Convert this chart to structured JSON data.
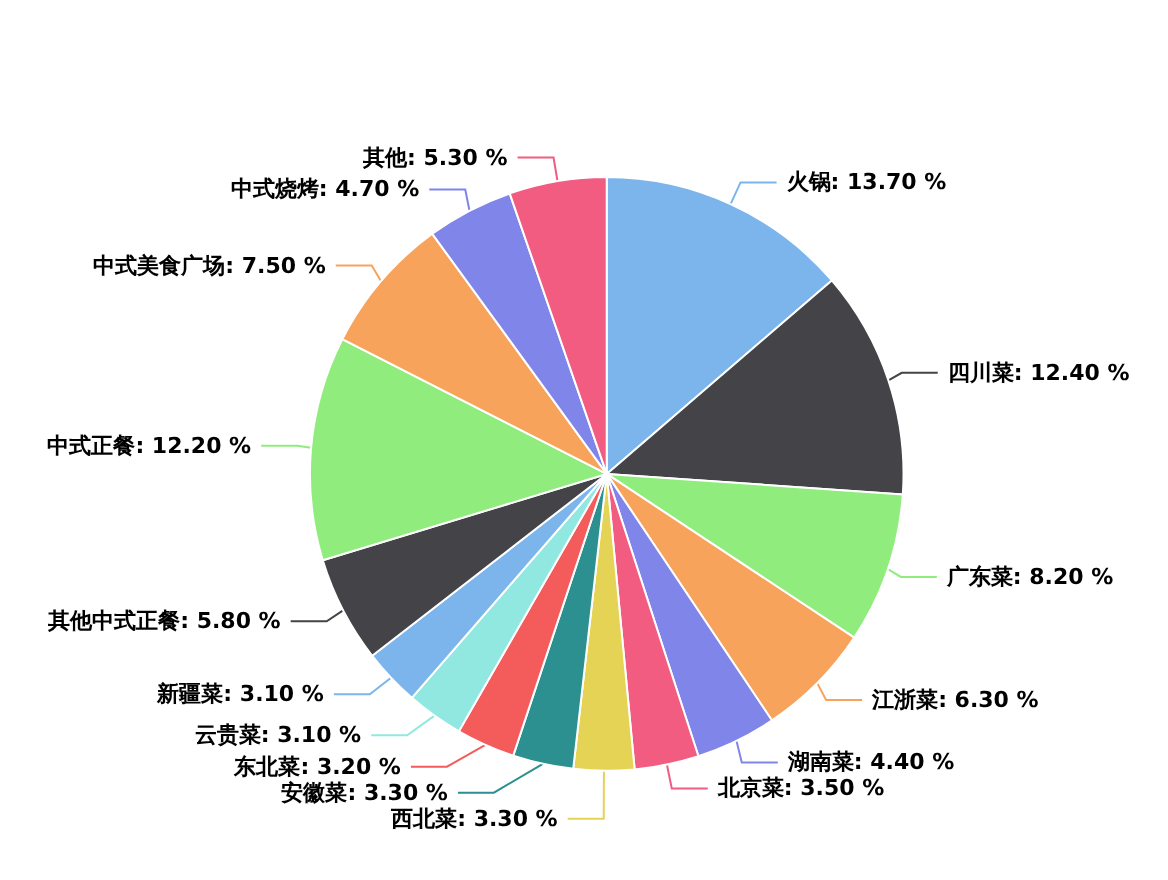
{
  "chart_data": {
    "type": "pie",
    "categories": [
      "火锅",
      "四川菜",
      "广东菜",
      "江浙菜",
      "湖南菜",
      "北京菜",
      "西北菜",
      "安徽菜",
      "东北菜",
      "云贵菜",
      "新疆菜",
      "其他中式正餐",
      "中式正餐",
      "中式美食广场",
      "中式烧烤",
      "其他"
    ],
    "values": [
      13.7,
      12.4,
      8.2,
      6.3,
      4.4,
      3.5,
      3.3,
      3.3,
      3.2,
      3.1,
      3.1,
      5.8,
      12.2,
      7.5,
      4.7,
      5.3
    ],
    "value_labels": [
      "13.70 %",
      "12.40 %",
      "8.20 %",
      "6.30 %",
      "4.40 %",
      "3.50 %",
      "3.30 %",
      "3.30 %",
      "3.20 %",
      "3.10 %",
      "3.10 %",
      "5.80 %",
      "12.20 %",
      "7.50 %",
      "4.70 %",
      "5.30 %"
    ],
    "colors": [
      "#7cb5ec",
      "#434348",
      "#90ed7d",
      "#f7a35c",
      "#8085e9",
      "#f15c80",
      "#e4d354",
      "#2b908f",
      "#f45b5b",
      "#91e8e1",
      "#7cb5ec",
      "#434348",
      "#90ed7d",
      "#f7a35c",
      "#8085e9",
      "#f15c80"
    ],
    "legend": false
  }
}
